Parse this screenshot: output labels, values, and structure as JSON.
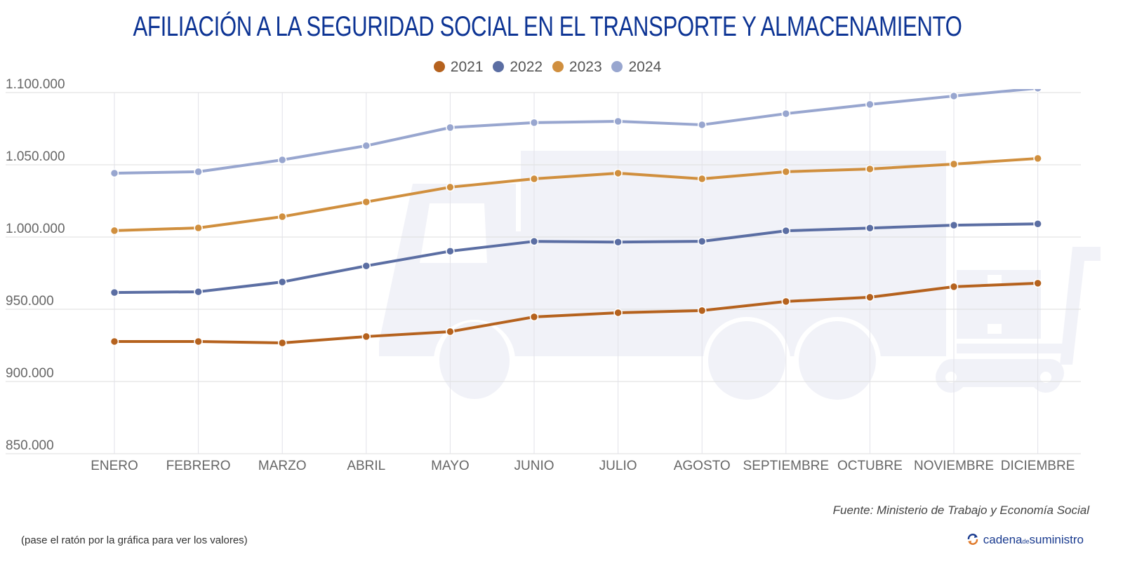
{
  "title": "AFILIACIÓN A LA SEGURIDAD SOCIAL EN EL TRANSPORTE Y ALMACENAMIENTO",
  "source": "Fuente: Ministerio de Trabajo y Economía Social",
  "hint": "(pase el ratón por la gráfica para ver los valores)",
  "logo": {
    "part1": "cadena",
    "part2": "de",
    "part3": "suministro",
    "icon": "refresh-arrows-icon"
  },
  "watermark_icon": "truck-icon",
  "chart_data": {
    "type": "line",
    "title": "AFILIACIÓN A LA SEGURIDAD SOCIAL EN EL TRANSPORTE Y ALMACENAMIENTO",
    "xlabel": "",
    "ylabel": "",
    "categories": [
      "ENERO",
      "FEBRERO",
      "MARZO",
      "ABRIL",
      "MAYO",
      "JUNIO",
      "JULIO",
      "AGOSTO",
      "SEPTIEMBRE",
      "OCTUBRE",
      "NOVIEMBRE",
      "DICIEMBRE"
    ],
    "ylim": [
      850000,
      1100000
    ],
    "yticks": [
      850000,
      900000,
      950000,
      1000000,
      1050000,
      1100000
    ],
    "ytick_labels": [
      "850.000",
      "900.000",
      "950.000",
      "1.000.000",
      "1.050.000",
      "1.100.000"
    ],
    "grid": true,
    "legend_position": "top-center",
    "series": [
      {
        "name": "2021",
        "color": "#b5621e",
        "values": [
          927700,
          927700,
          926700,
          931100,
          934500,
          944700,
          947600,
          949100,
          955400,
          958300,
          965600,
          968000
        ]
      },
      {
        "name": "2022",
        "color": "#5b6ea3",
        "values": [
          961600,
          962100,
          968900,
          980000,
          990200,
          997000,
          996500,
          997000,
          1004300,
          1006200,
          1008200,
          1009100
        ]
      },
      {
        "name": "2023",
        "color": "#d08f3e",
        "values": [
          1004400,
          1006300,
          1014100,
          1024300,
          1034500,
          1040300,
          1044200,
          1040300,
          1045200,
          1047100,
          1050500,
          1054400
        ]
      },
      {
        "name": "2024",
        "color": "#98a6cf",
        "values": [
          1044200,
          1045200,
          1053400,
          1063200,
          1075800,
          1079200,
          1080100,
          1077700,
          1085400,
          1091800,
          1097600,
          1103000
        ]
      }
    ]
  }
}
